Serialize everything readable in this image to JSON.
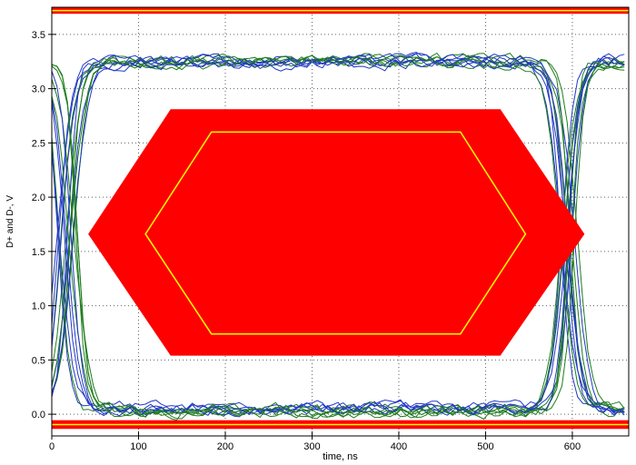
{
  "chart_data": {
    "type": "line",
    "title": "",
    "xlabel": "time, ns",
    "ylabel": "D+ and D-, V",
    "xlim": [
      0,
      665
    ],
    "ylim": [
      -0.2,
      3.75
    ],
    "xtick_values": [
      0,
      100,
      200,
      300,
      400,
      500,
      600
    ],
    "xtick_labels": [
      "0",
      "100",
      "200",
      "300",
      "400",
      "500",
      "600"
    ],
    "ytick_values": [
      0,
      0.5,
      1,
      1.5,
      2,
      2.5,
      3,
      3.5
    ],
    "ytick_labels": [
      "0.0",
      "0.5",
      "1.0",
      "1.5",
      "2.0",
      "2.5",
      "3.0",
      "3.5"
    ],
    "grid": true,
    "grid_color": "#606060",
    "axis_color": "#000000",
    "background": "#ffffff",
    "mask": {
      "fill_color": "#fe0000",
      "limit_line_color": "#ffff00",
      "top_bar": {
        "from_v": 3.69,
        "to_v": 3.75,
        "line_v": 3.72
      },
      "bottom_bar": {
        "from_v": -0.135,
        "to_v": -0.055,
        "line_v": -0.095
      },
      "outer_hexagon": [
        [
          42,
          1.66
        ],
        [
          137,
          2.81
        ],
        [
          517,
          2.81
        ],
        [
          614,
          1.66
        ],
        [
          517,
          0.54
        ],
        [
          137,
          0.54
        ]
      ],
      "inner_hexagon": [
        [
          108,
          1.66
        ],
        [
          184,
          2.6
        ],
        [
          471,
          2.6
        ],
        [
          546,
          1.66
        ],
        [
          471,
          0.74
        ],
        [
          184,
          0.74
        ]
      ]
    },
    "eye": {
      "high_level_v": 3.25,
      "low_level_v": 0.04,
      "left_crossing_ns": 18,
      "right_crossing_ns": 597,
      "transition_width_ns": 14,
      "jitter_ns": 12,
      "noise_v": 0.06,
      "traces_per_family": 11,
      "trace_colors": [
        "#2238c4",
        "#1e7d1e"
      ],
      "seed": 7
    }
  }
}
